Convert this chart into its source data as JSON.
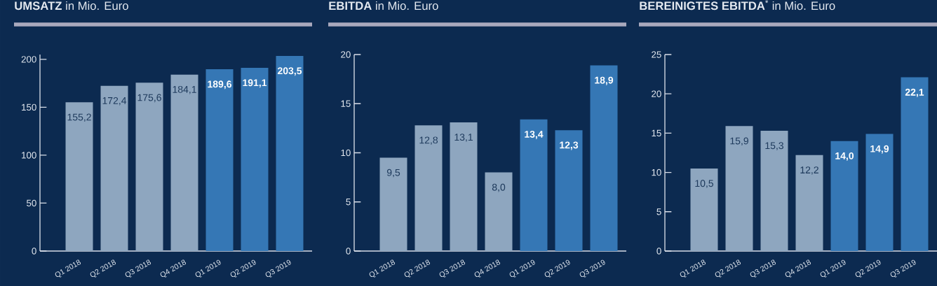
{
  "chart_data": [
    {
      "type": "bar",
      "title": "**UMSATZ** in Mio. Euro",
      "categories": [
        "Q1 2018",
        "Q2 2018",
        "Q3 2018",
        "Q4 2018",
        "Q1 2019",
        "Q2 2019",
        "Q3 2019"
      ],
      "values": [
        155.2,
        172.4,
        175.6,
        184.1,
        189.6,
        191.1,
        203.5
      ],
      "value_labels": [
        "155,2",
        "172,4",
        "175,6",
        "184,1",
        "189,6",
        "191,1",
        "203,5"
      ],
      "colors": [
        "#8ea6bf",
        "#8ea6bf",
        "#8ea6bf",
        "#8ea6bf",
        "#3577b5",
        "#3577b5",
        "#3577b5"
      ],
      "ylim": [
        0,
        205
      ],
      "yticks": [
        0,
        50,
        100,
        150,
        200
      ]
    },
    {
      "type": "bar",
      "title": "**EBITDA** in Mio. Euro",
      "categories": [
        "Q1 2018",
        "Q2 2018",
        "Q3 2018",
        "Q4 2018",
        "Q1 2019",
        "Q2 2019",
        "Q3 2019"
      ],
      "values": [
        9.5,
        12.8,
        13.1,
        8.0,
        13.4,
        12.3,
        18.9
      ],
      "value_labels": [
        "9,5",
        "12,8",
        "13,1",
        "8,0",
        "13,4",
        "12,3",
        "18,9"
      ],
      "colors": [
        "#8ea6bf",
        "#8ea6bf",
        "#8ea6bf",
        "#8ea6bf",
        "#3577b5",
        "#3577b5",
        "#3577b5"
      ],
      "ylim": [
        0,
        20
      ],
      "yticks": [
        0,
        5,
        10,
        15,
        20
      ]
    },
    {
      "type": "bar",
      "title": "**BEREINIGTES EBITDA**$^{*}$ in Mio. Euro",
      "categories": [
        "Q1 2018",
        "Q2 2018",
        "Q3 2018",
        "Q4 2018",
        "Q1 2019",
        "Q2 2019",
        "Q3 2019"
      ],
      "values": [
        10.5,
        15.9,
        15.3,
        12.2,
        14.0,
        14.9,
        22.1
      ],
      "value_labels": [
        "10,5",
        "15,9",
        "15,3",
        "12,2",
        "14,0",
        "14,9",
        "22,1"
      ],
      "colors": [
        "#8ea6bf",
        "#8ea6bf",
        "#8ea6bf",
        "#8ea6bf",
        "#3577b5",
        "#3577b5",
        "#3577b5"
      ],
      "ylim": [
        0,
        25
      ],
      "yticks": [
        0,
        5,
        10,
        15,
        20,
        25
      ]
    }
  ]
}
